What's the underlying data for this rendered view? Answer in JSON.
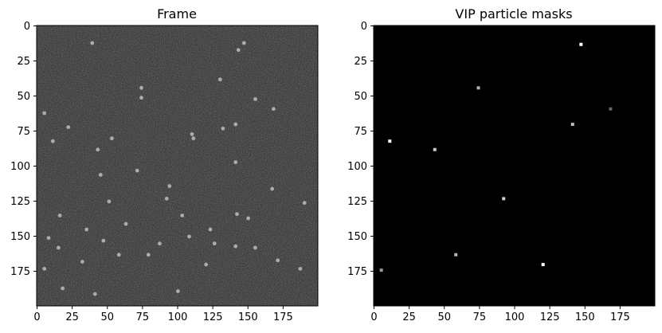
{
  "colors": {
    "background": "#ffffff",
    "axis": "#000000",
    "mask_background": "#000000",
    "frame_background": "#262626",
    "particle": "#e6e6e6"
  },
  "chart_data": [
    {
      "type": "heatmap",
      "title": "Frame",
      "colormap": "gray",
      "xlim": [
        0,
        199
      ],
      "ylim": [
        199,
        0
      ],
      "xticks": [
        0,
        25,
        50,
        75,
        100,
        125,
        150,
        175
      ],
      "yticks": [
        0,
        25,
        50,
        75,
        100,
        125,
        150,
        175
      ],
      "points": [
        {
          "x": 39,
          "y": 12
        },
        {
          "x": 147,
          "y": 12
        },
        {
          "x": 143,
          "y": 17
        },
        {
          "x": 130,
          "y": 38
        },
        {
          "x": 74,
          "y": 44
        },
        {
          "x": 74,
          "y": 51
        },
        {
          "x": 155,
          "y": 52
        },
        {
          "x": 168,
          "y": 59
        },
        {
          "x": 5,
          "y": 62
        },
        {
          "x": 141,
          "y": 70
        },
        {
          "x": 22,
          "y": 72
        },
        {
          "x": 132,
          "y": 73
        },
        {
          "x": 110,
          "y": 77
        },
        {
          "x": 111,
          "y": 80
        },
        {
          "x": 53,
          "y": 80
        },
        {
          "x": 11,
          "y": 82
        },
        {
          "x": 43,
          "y": 88
        },
        {
          "x": 141,
          "y": 97
        },
        {
          "x": 71,
          "y": 103
        },
        {
          "x": 45,
          "y": 106
        },
        {
          "x": 94,
          "y": 114
        },
        {
          "x": 167,
          "y": 116
        },
        {
          "x": 92,
          "y": 123
        },
        {
          "x": 51,
          "y": 125
        },
        {
          "x": 190,
          "y": 126
        },
        {
          "x": 16,
          "y": 135
        },
        {
          "x": 103,
          "y": 135
        },
        {
          "x": 142,
          "y": 134
        },
        {
          "x": 150,
          "y": 137
        },
        {
          "x": 63,
          "y": 141
        },
        {
          "x": 123,
          "y": 145
        },
        {
          "x": 35,
          "y": 145
        },
        {
          "x": 108,
          "y": 150
        },
        {
          "x": 8,
          "y": 151
        },
        {
          "x": 47,
          "y": 153
        },
        {
          "x": 87,
          "y": 155
        },
        {
          "x": 126,
          "y": 155
        },
        {
          "x": 141,
          "y": 157
        },
        {
          "x": 155,
          "y": 158
        },
        {
          "x": 15,
          "y": 158
        },
        {
          "x": 58,
          "y": 163
        },
        {
          "x": 79,
          "y": 163
        },
        {
          "x": 171,
          "y": 167
        },
        {
          "x": 32,
          "y": 168
        },
        {
          "x": 120,
          "y": 170
        },
        {
          "x": 5,
          "y": 173
        },
        {
          "x": 187,
          "y": 173
        },
        {
          "x": 18,
          "y": 187
        },
        {
          "x": 100,
          "y": 189
        },
        {
          "x": 41,
          "y": 191
        }
      ]
    },
    {
      "type": "heatmap",
      "title": "VIP particle masks",
      "colormap": "gray",
      "xlim": [
        0,
        199
      ],
      "ylim": [
        199,
        0
      ],
      "xticks": [
        0,
        25,
        50,
        75,
        100,
        125,
        150,
        175
      ],
      "yticks": [
        0,
        25,
        50,
        75,
        100,
        125,
        150,
        175
      ],
      "points": [
        {
          "x": 147,
          "y": 13,
          "value": 1.0
        },
        {
          "x": 74,
          "y": 44,
          "value": 0.7
        },
        {
          "x": 168,
          "y": 59,
          "value": 0.4
        },
        {
          "x": 141,
          "y": 70,
          "value": 0.75
        },
        {
          "x": 11,
          "y": 82,
          "value": 1.0
        },
        {
          "x": 43,
          "y": 88,
          "value": 0.8
        },
        {
          "x": 92,
          "y": 123,
          "value": 0.8
        },
        {
          "x": 58,
          "y": 163,
          "value": 0.7
        },
        {
          "x": 120,
          "y": 170,
          "value": 1.0
        },
        {
          "x": 5,
          "y": 174,
          "value": 0.6
        }
      ]
    }
  ]
}
